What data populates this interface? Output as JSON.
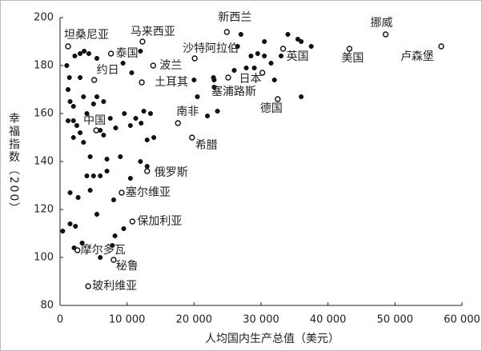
{
  "chart_data": {
    "type": "scatter",
    "x_label": "人均国内生产总值（美元）",
    "y_label": "幸福指数（200）",
    "xlim": [
      0,
      60000
    ],
    "ylim": [
      80,
      200
    ],
    "xticks": [
      0,
      {
        "value": 10000,
        "label": "10 000"
      },
      {
        "value": 20000,
        "label": "20 000"
      },
      {
        "value": 30000,
        "label": "30 000"
      },
      {
        "value": 40000,
        "label": "40 000"
      },
      {
        "value": 50000,
        "label": "50 000"
      },
      {
        "value": 60000,
        "label": "60 000"
      }
    ],
    "yticks": [
      80,
      100,
      120,
      140,
      160,
      180,
      200
    ],
    "series": [
      {
        "color": "#111111",
        "marker": "filled",
        "x": [
          400,
          1500,
          2700,
          1500,
          2300,
          2100,
          3300,
          4500,
          5500,
          6000,
          7800,
          8200,
          9500,
          4000,
          5000,
          6000,
          7000,
          9000,
          10500,
          12000,
          13000,
          8000,
          4500,
          7000,
          2000,
          3500,
          1200,
          2000,
          2500,
          3000,
          4000,
          5000,
          5500,
          6500,
          7500,
          8300,
          9600,
          10500,
          11300,
          12100,
          12500,
          13000,
          13500,
          14000,
          1500,
          2000,
          3500,
          1200,
          1000,
          1400,
          2200,
          3000,
          3600,
          5500,
          9400,
          10700,
          20000,
          20500,
          22000,
          23000,
          23000,
          23500,
          26500,
          27000,
          28500,
          29500,
          30500,
          29000,
          30500,
          31500,
          32000,
          33000,
          34000,
          35500,
          36000,
          37500,
          36000,
          6000,
          6500,
          4300,
          12000,
          3000,
          22900,
          26000,
          27800
        ],
        "values": [
          111,
          127,
          125,
          114,
          113,
          104,
          106,
          128,
          118,
          100,
          105,
          109,
          112,
          134,
          134,
          134,
          136,
          142,
          133,
          140,
          138,
          124,
          142,
          141,
          150,
          148,
          157,
          157,
          155,
          152,
          160,
          164,
          167,
          165,
          158,
          154,
          160,
          155,
          158,
          156,
          161,
          149,
          160,
          150,
          165,
          163,
          167,
          170,
          180,
          175,
          184,
          185,
          186,
          183,
          181,
          177,
          174,
          167,
          159,
          174,
          171,
          161,
          188,
          193,
          184,
          185,
          184,
          179,
          190,
          181,
          174,
          184,
          193,
          191,
          190,
          188,
          167,
          153,
          151,
          185,
          186,
          175,
          175,
          178,
          179
        ]
      },
      {
        "color": "#111111",
        "marker": "open",
        "labels": [
          "坦桑尼亚",
          "马来西亚",
          "新西兰",
          "挪威",
          "卢森堡",
          "泰国",
          "沙特阿拉伯",
          "英国",
          "美国",
          "约日",
          "波兰",
          "土耳其",
          "日本",
          "塞浦路斯",
          "德国",
          "南非",
          "中国",
          "希腊",
          "俄罗斯",
          "塞尔维亚",
          "保加利亚",
          "摩尔多瓦",
          "秘鲁",
          "玻利维亚"
        ],
        "x": [
          1200,
          12300,
          24900,
          48600,
          56900,
          7600,
          20100,
          33300,
          43200,
          5100,
          13900,
          12200,
          30200,
          25100,
          32500,
          17600,
          5400,
          19700,
          13000,
          9200,
          10800,
          2600,
          8000,
          4200
        ],
        "values": [
          188,
          190,
          194,
          193,
          188,
          185,
          183,
          187,
          187,
          174,
          180,
          173,
          177,
          175,
          166,
          156,
          153,
          150,
          136,
          127,
          115,
          103,
          99,
          88
        ]
      }
    ]
  }
}
